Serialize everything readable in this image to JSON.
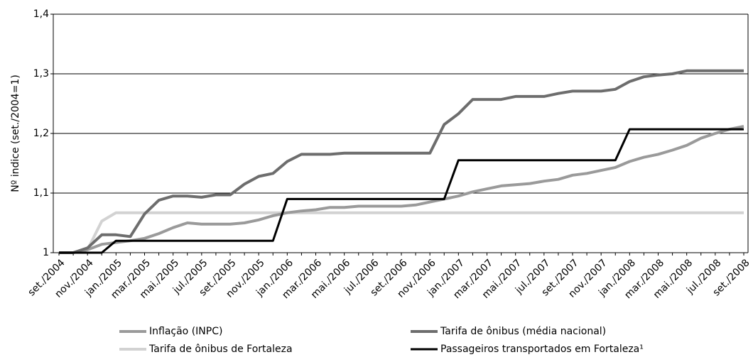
{
  "chart_data": {
    "type": "line",
    "y_label": "Nº indice (set./2004=1)",
    "categories": [
      "set./2004",
      null,
      "nov./2004",
      null,
      "jan./2005",
      null,
      "mar./2005",
      null,
      "mai./2005",
      null,
      "jul./2005",
      null,
      "set./2005",
      null,
      "nov./2005",
      null,
      "jan./2006",
      null,
      "mar./2006",
      null,
      "mai./2006",
      null,
      "jul./2006",
      null,
      "set./2006",
      null,
      "nov./2006",
      null,
      "jan./2007",
      null,
      "mar./2007",
      null,
      "mai./2007",
      null,
      "jul./2007",
      null,
      "set./2007",
      null,
      "nov./2007",
      null,
      "jan./2008",
      null,
      "mar./2008",
      null,
      "mai./2008",
      null,
      "jul./2008",
      null,
      "set./2008"
    ],
    "series": [
      {
        "name": "Inflação (INPC)",
        "color": "#9a9a9a",
        "values": [
          1,
          1,
          1.005,
          1.014,
          1.017,
          1.02,
          1.024,
          1.032,
          1.042,
          1.05,
          1.048,
          1.048,
          1.048,
          1.05,
          1.055,
          1.062,
          1.067,
          1.07,
          1.072,
          1.076,
          1.076,
          1.078,
          1.078,
          1.078,
          1.078,
          1.08,
          1.085,
          1.09,
          1.095,
          1.102,
          1.107,
          1.112,
          1.114,
          1.116,
          1.12,
          1.123,
          1.13,
          1.133,
          1.138,
          1.143,
          1.153,
          1.16,
          1.165,
          1.172,
          1.18,
          1.192,
          1.2,
          1.207,
          1.212
        ]
      },
      {
        "name": "Tarifa de ônibus (média nacional)",
        "color": "#6d6d6d",
        "values": [
          1,
          1,
          1.008,
          1.03,
          1.03,
          1.027,
          1.065,
          1.088,
          1.095,
          1.095,
          1.093,
          1.097,
          1.097,
          1.115,
          1.128,
          1.133,
          1.153,
          1.165,
          1.165,
          1.165,
          1.167,
          1.167,
          1.167,
          1.167,
          1.167,
          1.167,
          1.167,
          1.215,
          1.233,
          1.257,
          1.257,
          1.257,
          1.262,
          1.262,
          1.262,
          1.267,
          1.271,
          1.271,
          1.271,
          1.274,
          1.287,
          1.295,
          1.298,
          1.3,
          1.305,
          1.305,
          1.305,
          1.305,
          1.305
        ]
      },
      {
        "name": "Tarifa de ônibus de Fortaleza",
        "color": "#d2d2d2",
        "values": [
          1,
          1,
          1.005,
          1.053,
          1.067,
          1.067,
          1.067,
          1.067,
          1.067,
          1.067,
          1.067,
          1.067,
          1.067,
          1.067,
          1.067,
          1.067,
          1.067,
          1.067,
          1.067,
          1.067,
          1.067,
          1.067,
          1.067,
          1.067,
          1.067,
          1.067,
          1.067,
          1.067,
          1.067,
          1.067,
          1.067,
          1.067,
          1.067,
          1.067,
          1.067,
          1.067,
          1.067,
          1.067,
          1.067,
          1.067,
          1.067,
          1.067,
          1.067,
          1.067,
          1.067,
          1.067,
          1.067,
          1.067,
          1.067
        ]
      },
      {
        "name": "Passageiros transportados em Fortaleza¹",
        "color": "#000000",
        "values": [
          1,
          1,
          1,
          1,
          1.02,
          1.02,
          1.02,
          1.02,
          1.02,
          1.02,
          1.02,
          1.02,
          1.02,
          1.02,
          1.02,
          1.02,
          1.09,
          1.09,
          1.09,
          1.09,
          1.09,
          1.09,
          1.09,
          1.09,
          1.09,
          1.09,
          1.09,
          1.09,
          1.155,
          1.155,
          1.155,
          1.155,
          1.155,
          1.155,
          1.155,
          1.155,
          1.155,
          1.155,
          1.155,
          1.155,
          1.207,
          1.207,
          1.207,
          1.207,
          1.207,
          1.207,
          1.207,
          1.207,
          1.207
        ]
      }
    ],
    "ylim": [
      1,
      1.4
    ],
    "yticks": [
      1,
      {
        "value": 1.1,
        "label": "1,1"
      },
      {
        "value": 1.2,
        "label": "1,2"
      },
      {
        "value": 1.3,
        "label": "1,3"
      },
      {
        "value": 1.4,
        "label": "1,4"
      }
    ],
    "grid": true
  }
}
